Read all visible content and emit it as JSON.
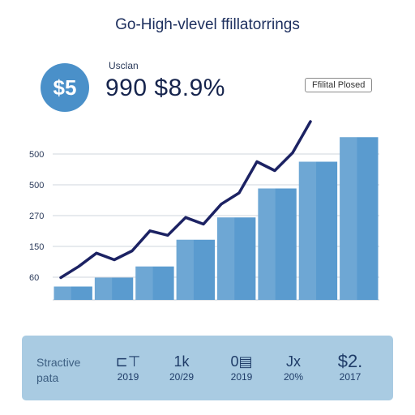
{
  "title": "Go-High-vlevel ffillatorrings",
  "badge": "$5",
  "kpi": {
    "label": "Usclan",
    "value": "990 $8.9%"
  },
  "legend_label": "Ffilital Plosed",
  "chart_data": {
    "type": "bar",
    "y_tick_labels": [
      "500",
      "500",
      "270",
      "150",
      "60"
    ],
    "bar_values": [
      60,
      100,
      150,
      270,
      370,
      500,
      620,
      730
    ],
    "line_values": [
      100,
      150,
      210,
      180,
      220,
      310,
      290,
      370,
      340,
      430,
      480,
      620,
      580,
      660,
      800
    ]
  },
  "panel": {
    "label_line1": "Stractive",
    "label_line2": "pata",
    "stats": [
      {
        "top": "⊏⊤",
        "bottom": "2019"
      },
      {
        "top": "1k",
        "bottom": "20/29"
      },
      {
        "top": "0▤",
        "bottom": "2019"
      },
      {
        "top": "Jx",
        "bottom": "20%"
      },
      {
        "top": "$2.",
        "bottom": "2017"
      }
    ]
  },
  "colors": {
    "bar": "#5a9bcf",
    "line": "#1c2263",
    "panel": "#a9cbe2"
  }
}
